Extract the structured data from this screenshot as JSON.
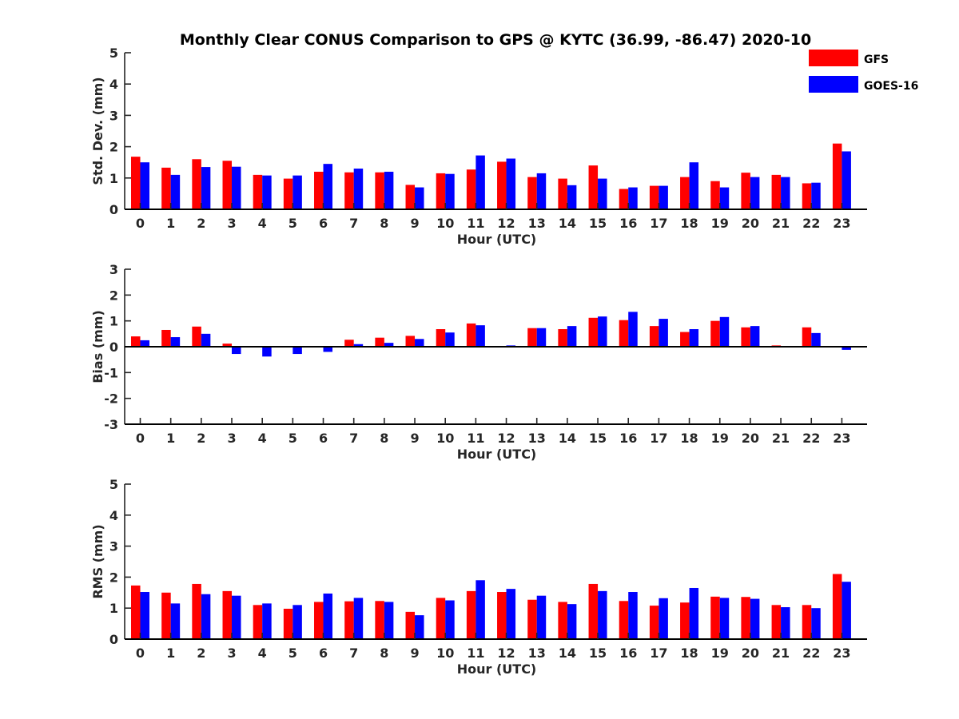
{
  "title": "Monthly Clear CONUS Comparison to GPS @ KYTC (36.99, -86.47) 2020-10",
  "colors": {
    "gfs": "#ff0000",
    "goes": "#0000ff",
    "axis": "#262626"
  },
  "chart_data": [
    {
      "type": "bar",
      "xlabel": "Hour (UTC)",
      "ylabel": "Std. Dev. (mm)",
      "ylim": [
        0,
        5
      ],
      "yticks": [
        0,
        1,
        2,
        3,
        4,
        5
      ],
      "categories": [
        "0",
        "1",
        "2",
        "3",
        "4",
        "5",
        "6",
        "7",
        "8",
        "9",
        "10",
        "11",
        "12",
        "13",
        "14",
        "15",
        "16",
        "17",
        "18",
        "19",
        "20",
        "21",
        "22",
        "23"
      ],
      "legend": {
        "position": "top-right"
      },
      "series": [
        {
          "name": "GFS",
          "values": [
            1.68,
            1.33,
            1.6,
            1.55,
            1.1,
            0.98,
            1.2,
            1.18,
            1.18,
            0.78,
            1.15,
            1.27,
            1.52,
            1.03,
            0.98,
            1.4,
            0.65,
            0.75,
            1.03,
            0.9,
            1.17,
            1.1,
            0.83,
            2.1
          ]
        },
        {
          "name": "GOES-16",
          "values": [
            1.5,
            1.1,
            1.35,
            1.36,
            1.08,
            1.08,
            1.45,
            1.3,
            1.2,
            0.7,
            1.13,
            1.72,
            1.62,
            1.15,
            0.77,
            0.98,
            0.7,
            0.75,
            1.5,
            0.7,
            1.03,
            1.03,
            0.85,
            1.85
          ]
        }
      ]
    },
    {
      "type": "bar",
      "xlabel": "Hour (UTC)",
      "ylabel": "Bias (mm)",
      "ylim": [
        -3,
        3
      ],
      "yticks": [
        -3,
        -2,
        -1,
        0,
        1,
        2,
        3
      ],
      "categories": [
        "0",
        "1",
        "2",
        "3",
        "4",
        "5",
        "6",
        "7",
        "8",
        "9",
        "10",
        "11",
        "12",
        "13",
        "14",
        "15",
        "16",
        "17",
        "18",
        "19",
        "20",
        "21",
        "22",
        "23"
      ],
      "series": [
        {
          "name": "GFS",
          "values": [
            0.4,
            0.65,
            0.78,
            0.12,
            0.0,
            0.03,
            -0.03,
            0.27,
            0.35,
            0.42,
            0.68,
            0.9,
            0.02,
            0.72,
            0.68,
            1.12,
            1.03,
            0.8,
            0.57,
            1.0,
            0.75,
            0.05,
            0.75,
            0.02
          ]
        },
        {
          "name": "GOES-16",
          "values": [
            0.25,
            0.37,
            0.5,
            -0.28,
            -0.38,
            -0.28,
            -0.2,
            0.1,
            0.15,
            0.3,
            0.55,
            0.83,
            0.05,
            0.72,
            0.8,
            1.17,
            1.35,
            1.08,
            0.68,
            1.15,
            0.8,
            0.0,
            0.53,
            -0.12
          ]
        }
      ]
    },
    {
      "type": "bar",
      "xlabel": "Hour (UTC)",
      "ylabel": "RMS (mm)",
      "ylim": [
        0,
        5
      ],
      "yticks": [
        0,
        1,
        2,
        3,
        4,
        5
      ],
      "categories": [
        "0",
        "1",
        "2",
        "3",
        "4",
        "5",
        "6",
        "7",
        "8",
        "9",
        "10",
        "11",
        "12",
        "13",
        "14",
        "15",
        "16",
        "17",
        "18",
        "19",
        "20",
        "21",
        "22",
        "23"
      ],
      "series": [
        {
          "name": "GFS",
          "values": [
            1.73,
            1.5,
            1.78,
            1.55,
            1.1,
            0.98,
            1.2,
            1.22,
            1.23,
            0.88,
            1.33,
            1.55,
            1.52,
            1.27,
            1.2,
            1.78,
            1.23,
            1.08,
            1.18,
            1.37,
            1.36,
            1.1,
            1.1,
            2.1
          ]
        },
        {
          "name": "GOES-16",
          "values": [
            1.52,
            1.15,
            1.45,
            1.4,
            1.15,
            1.1,
            1.47,
            1.33,
            1.2,
            0.77,
            1.25,
            1.9,
            1.62,
            1.4,
            1.13,
            1.55,
            1.52,
            1.32,
            1.65,
            1.33,
            1.3,
            1.03,
            1.0,
            1.85
          ]
        }
      ]
    }
  ]
}
